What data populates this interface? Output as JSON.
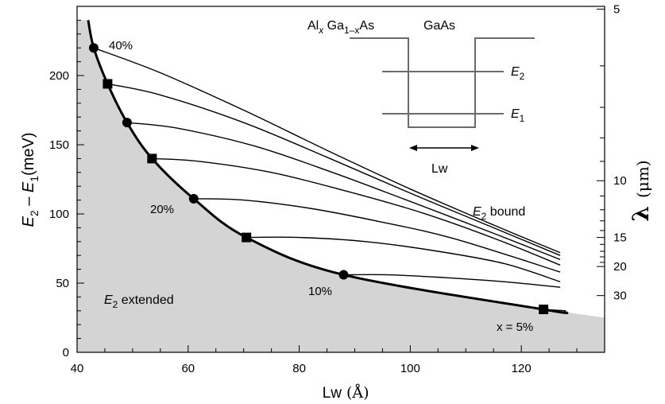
{
  "chart_data": {
    "type": "line",
    "xlabel": "Lw",
    "xunit": "(Å)",
    "ylabel_left": {
      "E": "E",
      "sub2": "2",
      "dash": " – ",
      "E1": "E",
      "sub1": "1",
      "unit": "(meV)"
    },
    "ylabel_right": {
      "lambda": "λ",
      "unit": "(μm)"
    },
    "xlim": [
      40,
      135
    ],
    "ylim": [
      0,
      250
    ],
    "x_ticks": [
      40,
      60,
      80,
      100,
      120
    ],
    "y_ticks": [
      0,
      50,
      100,
      150,
      200
    ],
    "right_axis": {
      "labeled_ticks": [
        {
          "label": "5",
          "y": 248
        },
        {
          "label": "10",
          "y": 124
        },
        {
          "label": "15",
          "y": 83
        },
        {
          "label": "20",
          "y": 62
        },
        {
          "label": "30",
          "y": 41
        }
      ],
      "minor_ticks_y": [
        207,
        177,
        155,
        138,
        113,
        103,
        95,
        88,
        78,
        73,
        69,
        65
      ]
    },
    "boundary_curve": {
      "name": "bound/extended boundary",
      "x": [
        42,
        43,
        45.5,
        49,
        53.5,
        61,
        70.5,
        88,
        124,
        128
      ],
      "y": [
        240,
        220,
        194,
        166,
        140,
        111,
        83,
        56,
        31,
        29
      ]
    },
    "shaded_region_label": {
      "text": "E",
      "sub": "2",
      "rest": " extended"
    },
    "bound_region_label": {
      "text": "E",
      "sub": "2",
      "rest": " bound"
    },
    "series": [
      {
        "marker": "circle",
        "label": "40%",
        "x": [
          43,
          55,
          70,
          85,
          100,
          115,
          127
        ],
        "y": [
          220,
          202,
          175,
          146,
          118,
          92,
          72
        ]
      },
      {
        "marker": "square",
        "x": [
          45.5,
          55,
          70,
          85,
          100,
          115,
          127
        ],
        "y": [
          194,
          186,
          166,
          141,
          115,
          90,
          70
        ]
      },
      {
        "marker": "circle",
        "x": [
          49,
          58,
          72,
          86,
          100,
          115,
          127
        ],
        "y": [
          166,
          162,
          149,
          130,
          109,
          86,
          67
        ]
      },
      {
        "marker": "square",
        "label": "20%",
        "x": [
          53.5,
          62,
          75,
          88,
          102,
          116,
          127
        ],
        "y": [
          140,
          138,
          130,
          117,
          101,
          81,
          63
        ]
      },
      {
        "marker": "circle",
        "x": [
          61,
          70,
          82,
          95,
          108,
          127
        ],
        "y": [
          111,
          110,
          104,
          94,
          82,
          58
        ]
      },
      {
        "marker": "square",
        "x": [
          70.5,
          80,
          92,
          105,
          117,
          127
        ],
        "y": [
          83,
          83,
          80,
          73,
          64,
          51
        ]
      },
      {
        "marker": "circle",
        "label": "10%",
        "x": [
          88,
          96,
          106,
          117,
          127
        ],
        "y": [
          56,
          56,
          54,
          51,
          47
        ]
      },
      {
        "marker": "square",
        "label": "x = 5%",
        "x": [
          124,
          128
        ],
        "y": [
          31,
          30
        ]
      }
    ],
    "grey_region_right_edge_y": 25
  },
  "inset": {
    "label_al": "Al",
    "label_x": "x",
    "label_ga": " Ga",
    "label_sub": "1–x",
    "label_as": "As",
    "label_gaas": "GaAs",
    "label_e2": "E",
    "label_e2_sub": "2",
    "label_e1": "E",
    "label_e1_sub": "1",
    "label_lw": "Lw"
  },
  "colors": {
    "shade": "#d4d4d4",
    "curve": "#000000",
    "inset_line": "#6b6b6b"
  }
}
